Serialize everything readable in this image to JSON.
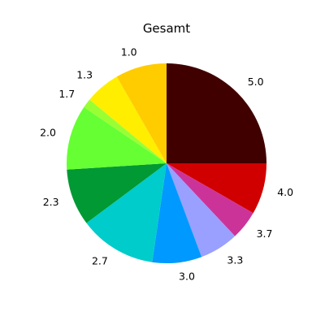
{
  "chart_data": {
    "type": "pie",
    "title": "Gesamt",
    "start_angle_deg": 90,
    "direction": "clockwise",
    "categories": [
      "5.0",
      "4.0",
      "3.7",
      "3.3",
      "3.0",
      "2.7",
      "2.3",
      "2.0",
      "1.7",
      "1.3",
      "1.0"
    ],
    "values": [
      25,
      8.3,
      4.7,
      6.3,
      8,
      12.5,
      9.2,
      10.5,
      1.5,
      5.7,
      8.3
    ],
    "colors": [
      "#400000",
      "#d00000",
      "#cc3399",
      "#99a0ff",
      "#0099ff",
      "#00cccc",
      "#009933",
      "#66ff33",
      "#99ff33",
      "#ffee00",
      "#ffcc00"
    ]
  }
}
